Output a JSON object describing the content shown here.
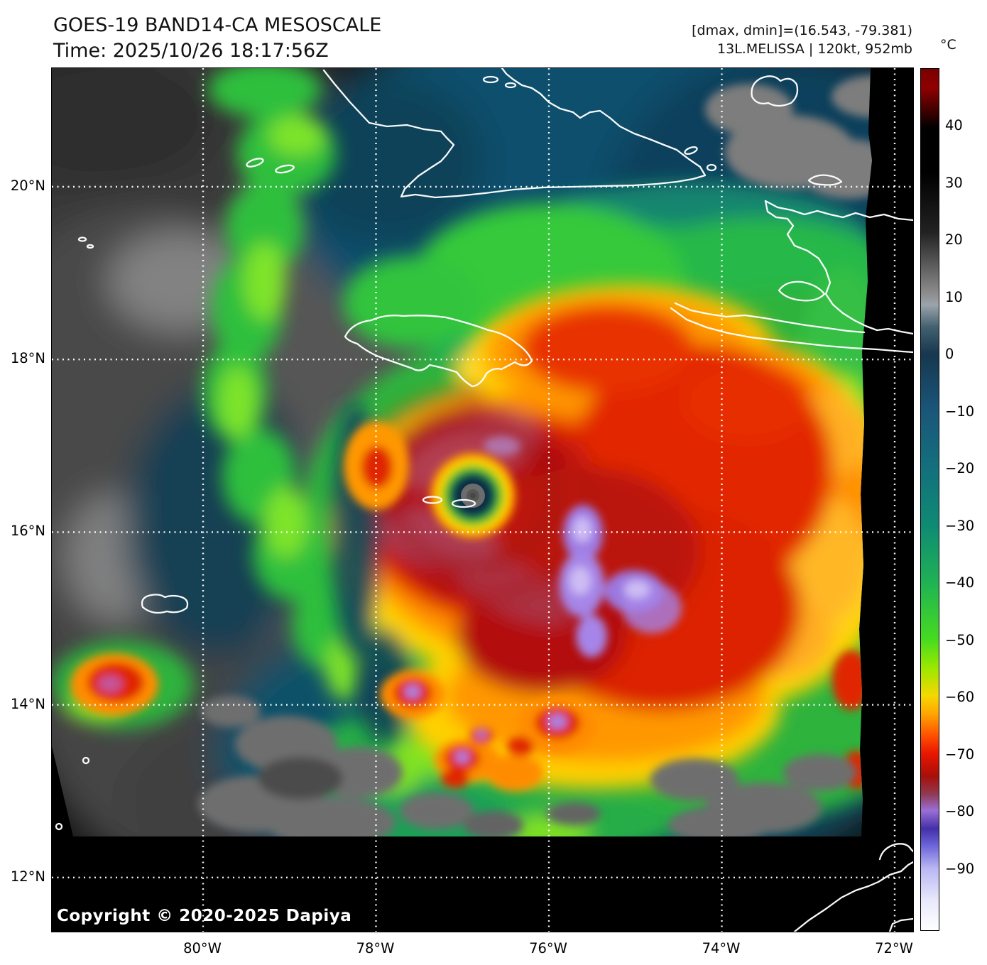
{
  "header": {
    "title": "GOES-19 BAND14-CA MESOSCALE",
    "time": "Time: 2025/10/26 18:17:56Z"
  },
  "annotations": {
    "range": "[dmax, dmin]=(16.543, -79.381)",
    "storm": "13L.MELISSA | 120kt, 952mb"
  },
  "colorbar": {
    "unit": "°C",
    "ticks": [
      {
        "value": 40,
        "label": "40"
      },
      {
        "value": 30,
        "label": "30"
      },
      {
        "value": 20,
        "label": "20"
      },
      {
        "value": 10,
        "label": "10"
      },
      {
        "value": 0,
        "label": "0"
      },
      {
        "value": -10,
        "label": "−10"
      },
      {
        "value": -20,
        "label": "−20"
      },
      {
        "value": -30,
        "label": "−30"
      },
      {
        "value": -40,
        "label": "−40"
      },
      {
        "value": -50,
        "label": "−50"
      },
      {
        "value": -60,
        "label": "−60"
      },
      {
        "value": -70,
        "label": "−70"
      },
      {
        "value": -80,
        "label": "−80"
      },
      {
        "value": -90,
        "label": "−90"
      }
    ]
  },
  "axes": {
    "lat": [
      {
        "value": 20,
        "label": "20°N"
      },
      {
        "value": 18,
        "label": "18°N"
      },
      {
        "value": 16,
        "label": "16°N"
      },
      {
        "value": 14,
        "label": "14°N"
      },
      {
        "value": 12,
        "label": "12°N"
      }
    ],
    "lon": [
      {
        "value": 80,
        "label": "80°W"
      },
      {
        "value": 78,
        "label": "78°W"
      },
      {
        "value": 76,
        "label": "76°W"
      },
      {
        "value": 74,
        "label": "74°W"
      },
      {
        "value": 72,
        "label": "72°W"
      }
    ]
  },
  "footer": {
    "copyright": "Copyright © 2020-2025 Dapiya"
  },
  "chart_data": {
    "type": "heatmap",
    "title": "GOES-19 BAND14-CA MESOSCALE",
    "time_utc": "2025/10/26 18:17:56Z",
    "units": "°C",
    "x_axis": {
      "label": "longitude",
      "tick_labels": [
        "80°W",
        "78°W",
        "76°W",
        "74°W",
        "72°W"
      ],
      "range_deg_west": [
        81.75,
        71.8
      ]
    },
    "y_axis": {
      "label": "latitude",
      "tick_labels": [
        "20°N",
        "18°N",
        "16°N",
        "14°N",
        "12°N"
      ],
      "range_deg_north": [
        11.4,
        21.4
      ]
    },
    "colorbar_ticks_c": [
      40,
      30,
      20,
      10,
      0,
      -10,
      -20,
      -30,
      -40,
      -50,
      -60,
      -70,
      -80,
      -90
    ],
    "colormap_stops": [
      {
        "t_c": 45,
        "color": "#8b0000"
      },
      {
        "t_c": 40,
        "color": "#000000"
      },
      {
        "t_c": 20,
        "color": "#2a2a2a"
      },
      {
        "t_c": 10,
        "color": "#969696"
      },
      {
        "t_c": 5,
        "color": "#45606f"
      },
      {
        "t_c": 0,
        "color": "#16374f"
      },
      {
        "t_c": -10,
        "color": "#1a567a"
      },
      {
        "t_c": -20,
        "color": "#12707c"
      },
      {
        "t_c": -30,
        "color": "#0f8a74"
      },
      {
        "t_c": -40,
        "color": "#1fb254"
      },
      {
        "t_c": -50,
        "color": "#46db20"
      },
      {
        "t_c": -60,
        "color": "#f5d800"
      },
      {
        "t_c": -65,
        "color": "#ff8c00"
      },
      {
        "t_c": -70,
        "color": "#e81600"
      },
      {
        "t_c": -75,
        "color": "#a80f08"
      },
      {
        "t_c": -80,
        "color": "#9a6fd6"
      },
      {
        "t_c": -84,
        "color": "#4430a8"
      },
      {
        "t_c": -90,
        "color": "#b9b6f2"
      },
      {
        "t_c": -100,
        "color": "#ffffff"
      }
    ],
    "storm": {
      "name": "13L.MELISSA",
      "intensity_kt": 120,
      "pressure_mb": 952,
      "eye_approx": {
        "lat_n": 16.4,
        "lon_w": 76.9
      }
    },
    "dmax_dmin": [
      16.543,
      -79.381
    ],
    "grid": "white dotted lat/lon grid every 2 degrees",
    "legend_position": "right colorbar"
  }
}
